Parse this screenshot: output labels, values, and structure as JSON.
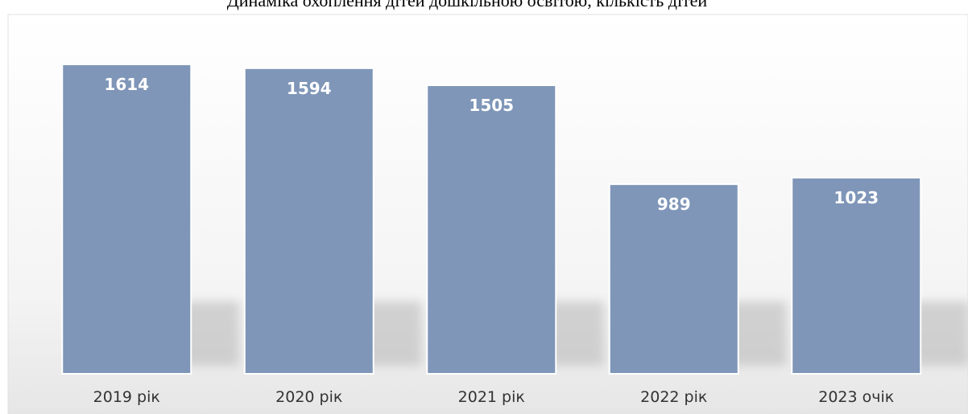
{
  "chart_data": {
    "type": "bar",
    "title": "Динаміка охоплення дітей дошкільною освітою, кількість дітей",
    "categories": [
      "2019 рік",
      "2020 рік",
      "2021 рік",
      "2022 рік",
      "2023 очік"
    ],
    "values": [
      1614,
      1594,
      1505,
      989,
      1023
    ],
    "color": "#7f96b8"
  }
}
